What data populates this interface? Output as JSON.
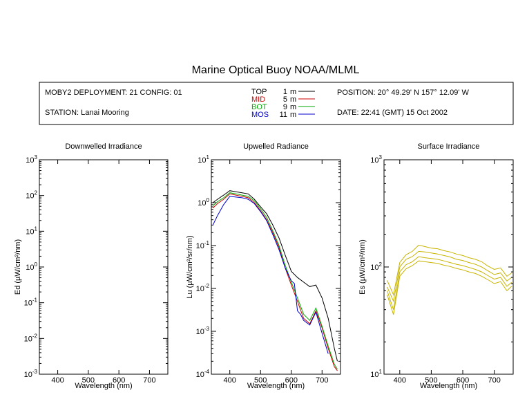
{
  "title": "Marine Optical Buoy NOAA/MLML",
  "info": {
    "deployment": "MOBY2 DEPLOYMENT: 21 CONFIG: 01",
    "station": "STATION: Lanai Mooring",
    "position": "POSITION: 20° 49.29' N   157° 12.09' W",
    "date": "DATE: 22:41 (GMT) 15 Oct 2002",
    "depths": [
      {
        "name": "TOP",
        "depth": "1",
        "unit": "m",
        "color": "#000000"
      },
      {
        "name": "MID",
        "depth": "5",
        "unit": "m",
        "color": "#cc0000"
      },
      {
        "name": "BOT",
        "depth": "9",
        "unit": "m",
        "color": "#00aa00"
      },
      {
        "name": "MOS",
        "depth": "11",
        "unit": "m",
        "color": "#0000cc"
      }
    ]
  },
  "chart_data": [
    {
      "type": "line",
      "title": "Downwelled Irradiance",
      "xlabel": "Wavelength (nm)",
      "ylabel": "Ed  (µW/cm²/nm)",
      "xlim": [
        340,
        760
      ],
      "xticks": [
        400,
        500,
        600,
        700
      ],
      "ylim": [
        0.001,
        1000
      ],
      "yscale": "log",
      "yticks_exp": [
        -3,
        -2,
        -1,
        0,
        1,
        2,
        3
      ],
      "series": []
    },
    {
      "type": "line",
      "title": "Upwelled Radiance",
      "xlabel": "Wavelength (nm)",
      "ylabel": "Lu  (µW/cm²/sr/nm)",
      "xlim": [
        340,
        760
      ],
      "xticks": [
        400,
        500,
        600,
        700
      ],
      "ylim": [
        0.0001,
        10
      ],
      "yscale": "log",
      "yticks_exp": [
        -4,
        -3,
        -2,
        -1,
        0,
        1
      ],
      "series": [
        {
          "color": "#000000",
          "x": [
            345,
            360,
            380,
            400,
            420,
            440,
            460,
            480,
            500,
            520,
            540,
            560,
            580,
            600,
            620,
            640,
            660,
            680,
            700,
            720,
            740,
            750
          ],
          "y": [
            1.0,
            1.2,
            1.5,
            1.9,
            1.8,
            1.7,
            1.6,
            1.2,
            0.8,
            0.55,
            0.3,
            0.15,
            0.06,
            0.025,
            0.018,
            0.014,
            0.011,
            0.012,
            0.006,
            0.002,
            0.0004,
            0.0002
          ]
        },
        {
          "color": "#cc0000",
          "x": [
            345,
            360,
            380,
            400,
            420,
            440,
            460,
            480,
            500,
            520,
            540,
            560,
            580,
            600,
            620,
            640,
            660,
            680,
            700,
            720,
            740,
            750
          ],
          "y": [
            0.75,
            0.95,
            1.2,
            1.6,
            1.5,
            1.4,
            1.3,
            1.0,
            0.65,
            0.4,
            0.2,
            0.09,
            0.03,
            0.012,
            0.005,
            0.002,
            0.0015,
            0.003,
            0.0012,
            0.0004,
            0.00015,
            0.00012
          ]
        },
        {
          "color": "#00aa00",
          "x": [
            345,
            360,
            380,
            400,
            420,
            440,
            460,
            480,
            500,
            520,
            540,
            560,
            580,
            600,
            620,
            640,
            660,
            680,
            700,
            720,
            740,
            750
          ],
          "y": [
            0.85,
            1.05,
            1.3,
            1.7,
            1.6,
            1.5,
            1.4,
            1.1,
            0.72,
            0.45,
            0.22,
            0.1,
            0.035,
            0.014,
            0.006,
            0.0025,
            0.0018,
            0.0035,
            0.0013,
            0.00045,
            0.00017,
            0.00013
          ]
        },
        {
          "color": "#0000cc",
          "x": [
            345,
            360,
            380,
            400,
            420,
            440,
            460,
            480,
            500,
            520,
            540,
            560,
            580,
            600,
            610,
            620,
            630,
            640,
            660,
            680,
            700,
            720
          ],
          "y": [
            0.3,
            0.5,
            0.9,
            1.4,
            1.35,
            1.3,
            1.2,
            0.95,
            0.62,
            0.38,
            0.18,
            0.08,
            0.03,
            0.015,
            0.013,
            0.003,
            0.0025,
            0.0018,
            0.0014,
            0.0028,
            0.0009,
            0.0003
          ]
        }
      ]
    },
    {
      "type": "line",
      "title": "Surface Irradiance",
      "xlabel": "Wavelength (nm)",
      "ylabel": "Es  (µW/cm²/nm)",
      "xlim": [
        350,
        760
      ],
      "xticks": [
        400,
        500,
        600,
        700
      ],
      "ylim": [
        10,
        1000
      ],
      "yscale": "log",
      "yticks_exp": [
        1,
        2,
        3
      ],
      "series": [
        {
          "color": "#c8b400",
          "x": [
            360,
            380,
            400,
            420,
            440,
            460,
            480,
            500,
            520,
            540,
            560,
            580,
            600,
            620,
            640,
            660,
            680,
            700,
            720,
            740,
            755
          ],
          "y": [
            75,
            55,
            110,
            130,
            140,
            160,
            155,
            150,
            148,
            142,
            138,
            132,
            128,
            122,
            118,
            112,
            102,
            95,
            98,
            82,
            88
          ]
        },
        {
          "color": "#c8b400",
          "x": [
            360,
            380,
            400,
            420,
            440,
            460,
            480,
            500,
            520,
            540,
            560,
            580,
            600,
            620,
            640,
            660,
            680,
            700,
            720,
            740,
            755
          ],
          "y": [
            65,
            48,
            100,
            118,
            125,
            140,
            138,
            135,
            132,
            128,
            124,
            118,
            115,
            110,
            106,
            100,
            92,
            85,
            88,
            74,
            80
          ]
        },
        {
          "color": "#c8b400",
          "x": [
            360,
            380,
            400,
            420,
            440,
            460,
            480,
            500,
            520,
            540,
            560,
            580,
            600,
            620,
            640,
            660,
            680,
            700,
            720,
            740,
            755
          ],
          "y": [
            60,
            40,
            90,
            105,
            112,
            125,
            122,
            120,
            118,
            114,
            110,
            106,
            103,
            99,
            95,
            90,
            83,
            77,
            80,
            66,
            72
          ]
        },
        {
          "color": "#c8b400",
          "x": [
            360,
            380,
            400,
            420,
            440,
            460,
            480,
            500,
            520,
            540,
            560,
            580,
            600,
            620,
            640,
            660,
            680,
            700,
            720,
            740,
            755
          ],
          "y": [
            55,
            36,
            82,
            96,
            103,
            114,
            112,
            110,
            108,
            104,
            101,
            97,
            94,
            90,
            87,
            82,
            76,
            70,
            73,
            60,
            66
          ]
        }
      ]
    }
  ]
}
